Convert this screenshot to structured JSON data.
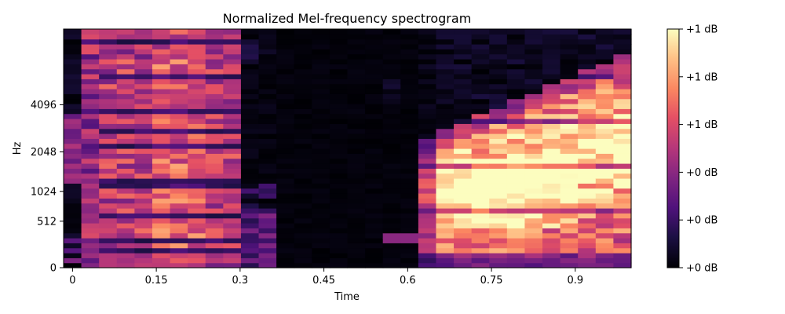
{
  "chart_data": {
    "type": "heatmap",
    "title": "Normalized Mel-frequency spectrogram",
    "xlabel": "Time",
    "ylabel": "Hz",
    "x_ticks": [
      "0",
      "0.15",
      "0.3",
      "0.45",
      "0.6",
      "0.75",
      "0.9"
    ],
    "x_tick_values": [
      0,
      0.15,
      0.3,
      0.45,
      0.6,
      0.75,
      0.9
    ],
    "xlim": [
      -0.016,
      1.0
    ],
    "y_ticks": [
      "0",
      "512",
      "1024",
      "2048",
      "4096"
    ],
    "y_scale": "mel",
    "colorbar": {
      "colormap": "magma",
      "tick_labels": [
        "+0 dB",
        "+0 dB",
        "+0 dB",
        "+1 dB",
        "+1 dB",
        "+1 dB"
      ]
    },
    "n_time_frames": 32,
    "n_mel_bins": 48,
    "segments": [
      {
        "time_range": [
          0.0,
          0.27
        ],
        "description": "broadband energy, strongest at 0.15-0.24"
      },
      {
        "time_range": [
          0.57,
          1.0
        ],
        "description": "rising harmonic energy, peak near 0.72-0.85"
      }
    ]
  }
}
